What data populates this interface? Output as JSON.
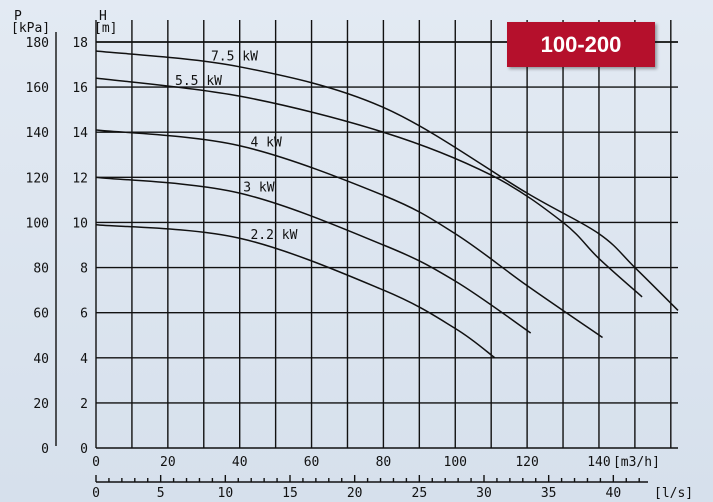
{
  "badge": "100-200",
  "chart_data": {
    "type": "line",
    "title": "",
    "axes": {
      "left_outer": {
        "label_top": "P",
        "label_unit": "[kPa]",
        "ticks": [
          0,
          20,
          40,
          60,
          80,
          100,
          120,
          140,
          160,
          180
        ]
      },
      "left_inner": {
        "label_top": "H",
        "label_unit": "[m]",
        "ticks": [
          0,
          2,
          4,
          6,
          8,
          10,
          12,
          14,
          16,
          18
        ],
        "ylim": [
          0,
          19
        ]
      },
      "bottom_m3h": {
        "unit": "[m3/h]",
        "ticks": [
          0,
          20,
          40,
          60,
          80,
          100,
          120,
          140
        ],
        "xlim": [
          0,
          162
        ]
      },
      "bottom_ls": {
        "unit": "[l/s]",
        "ticks": [
          0,
          5,
          10,
          15,
          20,
          25,
          30,
          35,
          40
        ]
      }
    },
    "grid": true,
    "series": [
      {
        "name": "7.5 kW",
        "x": [
          0,
          40,
          80,
          120,
          140,
          150,
          162
        ],
        "y": [
          17.6,
          16.9,
          15.1,
          11.3,
          9.5,
          8.0,
          6.1
        ]
      },
      {
        "name": "5.5 kW",
        "x": [
          0,
          40,
          80,
          110,
          130,
          140,
          152
        ],
        "y": [
          16.4,
          15.6,
          14.0,
          12.1,
          10.0,
          8.4,
          6.7
        ]
      },
      {
        "name": "4 kW",
        "x": [
          0,
          40,
          80,
          100,
          120,
          141
        ],
        "y": [
          14.1,
          13.4,
          11.2,
          9.5,
          7.2,
          4.9
        ]
      },
      {
        "name": "3 kW",
        "x": [
          0,
          40,
          80,
          100,
          121
        ],
        "y": [
          12.0,
          11.3,
          9.0,
          7.4,
          5.1
        ]
      },
      {
        "name": "2.2 kW",
        "x": [
          0,
          40,
          80,
          100,
          111
        ],
        "y": [
          9.9,
          9.3,
          7.0,
          5.3,
          4.0
        ]
      }
    ]
  }
}
